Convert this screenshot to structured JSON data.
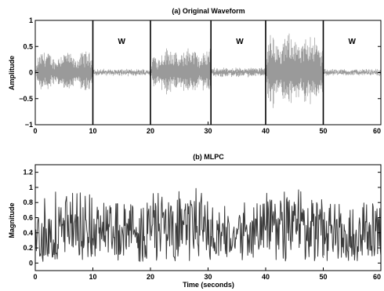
{
  "chart_data": [
    {
      "type": "line",
      "title": "(a) Original Waveform",
      "xlabel": "",
      "ylabel": "Amplitude",
      "xlim": [
        0,
        60
      ],
      "ylim": [
        -1,
        1
      ],
      "xticks": [
        "0",
        "10",
        "20",
        "30",
        "40",
        "50",
        "60"
      ],
      "yticks": [
        "−1",
        "−0.5",
        "0",
        "0.5",
        "1"
      ],
      "ytick_values": [
        -1,
        -0.5,
        0,
        0.5,
        1
      ],
      "boundaries": [
        10,
        20,
        30.5,
        40,
        50
      ],
      "annotations": [
        {
          "text": "W",
          "x": 15,
          "y": 0.55
        },
        {
          "text": "W",
          "x": 35.5,
          "y": 0.55
        },
        {
          "text": "W",
          "x": 55,
          "y": 0.55
        }
      ],
      "segments": [
        {
          "x_start": 0,
          "x_end": 10,
          "envelope": 0.4,
          "kind": "speech"
        },
        {
          "x_start": 10,
          "x_end": 20,
          "envelope": 0.05,
          "kind": "W"
        },
        {
          "x_start": 20,
          "x_end": 30.5,
          "envelope": 0.48,
          "kind": "speech"
        },
        {
          "x_start": 30.5,
          "x_end": 40,
          "envelope": 0.08,
          "kind": "W"
        },
        {
          "x_start": 40,
          "x_end": 50,
          "envelope": 0.75,
          "kind": "speech"
        },
        {
          "x_start": 50,
          "x_end": 60,
          "envelope": 0.05,
          "kind": "W"
        }
      ],
      "line_color": "#9a9a9a"
    },
    {
      "type": "line",
      "title": "(b) MLPC",
      "xlabel": "Time (seconds)",
      "ylabel": "Magnitude",
      "xlim": [
        0,
        60
      ],
      "ylim": [
        -0.1,
        1.3
      ],
      "xticks": [
        "0",
        "10",
        "20",
        "30",
        "40",
        "50",
        "60"
      ],
      "yticks": [
        "0",
        "0.2",
        "0.4",
        "0.6",
        "0.8",
        "1",
        "1.2"
      ],
      "ytick_values": [
        0,
        0.2,
        0.4,
        0.6,
        0.8,
        1.0,
        1.2
      ],
      "segments": [
        {
          "x_start": 0,
          "x_end": 10,
          "base": 0.35,
          "spread": 0.3,
          "peak": 0.95
        },
        {
          "x_start": 10,
          "x_end": 20,
          "base": 0.35,
          "spread": 0.25,
          "peak": 0.8
        },
        {
          "x_start": 20,
          "x_end": 30.5,
          "base": 0.5,
          "spread": 0.35,
          "peak": 1.0
        },
        {
          "x_start": 30.5,
          "x_end": 40,
          "base": 0.35,
          "spread": 0.25,
          "peak": 0.8
        },
        {
          "x_start": 40,
          "x_end": 50,
          "base": 0.5,
          "spread": 0.35,
          "peak": 0.98
        },
        {
          "x_start": 50,
          "x_end": 60,
          "base": 0.35,
          "spread": 0.25,
          "peak": 0.85
        }
      ],
      "line_color": "#3a3a3a"
    }
  ]
}
